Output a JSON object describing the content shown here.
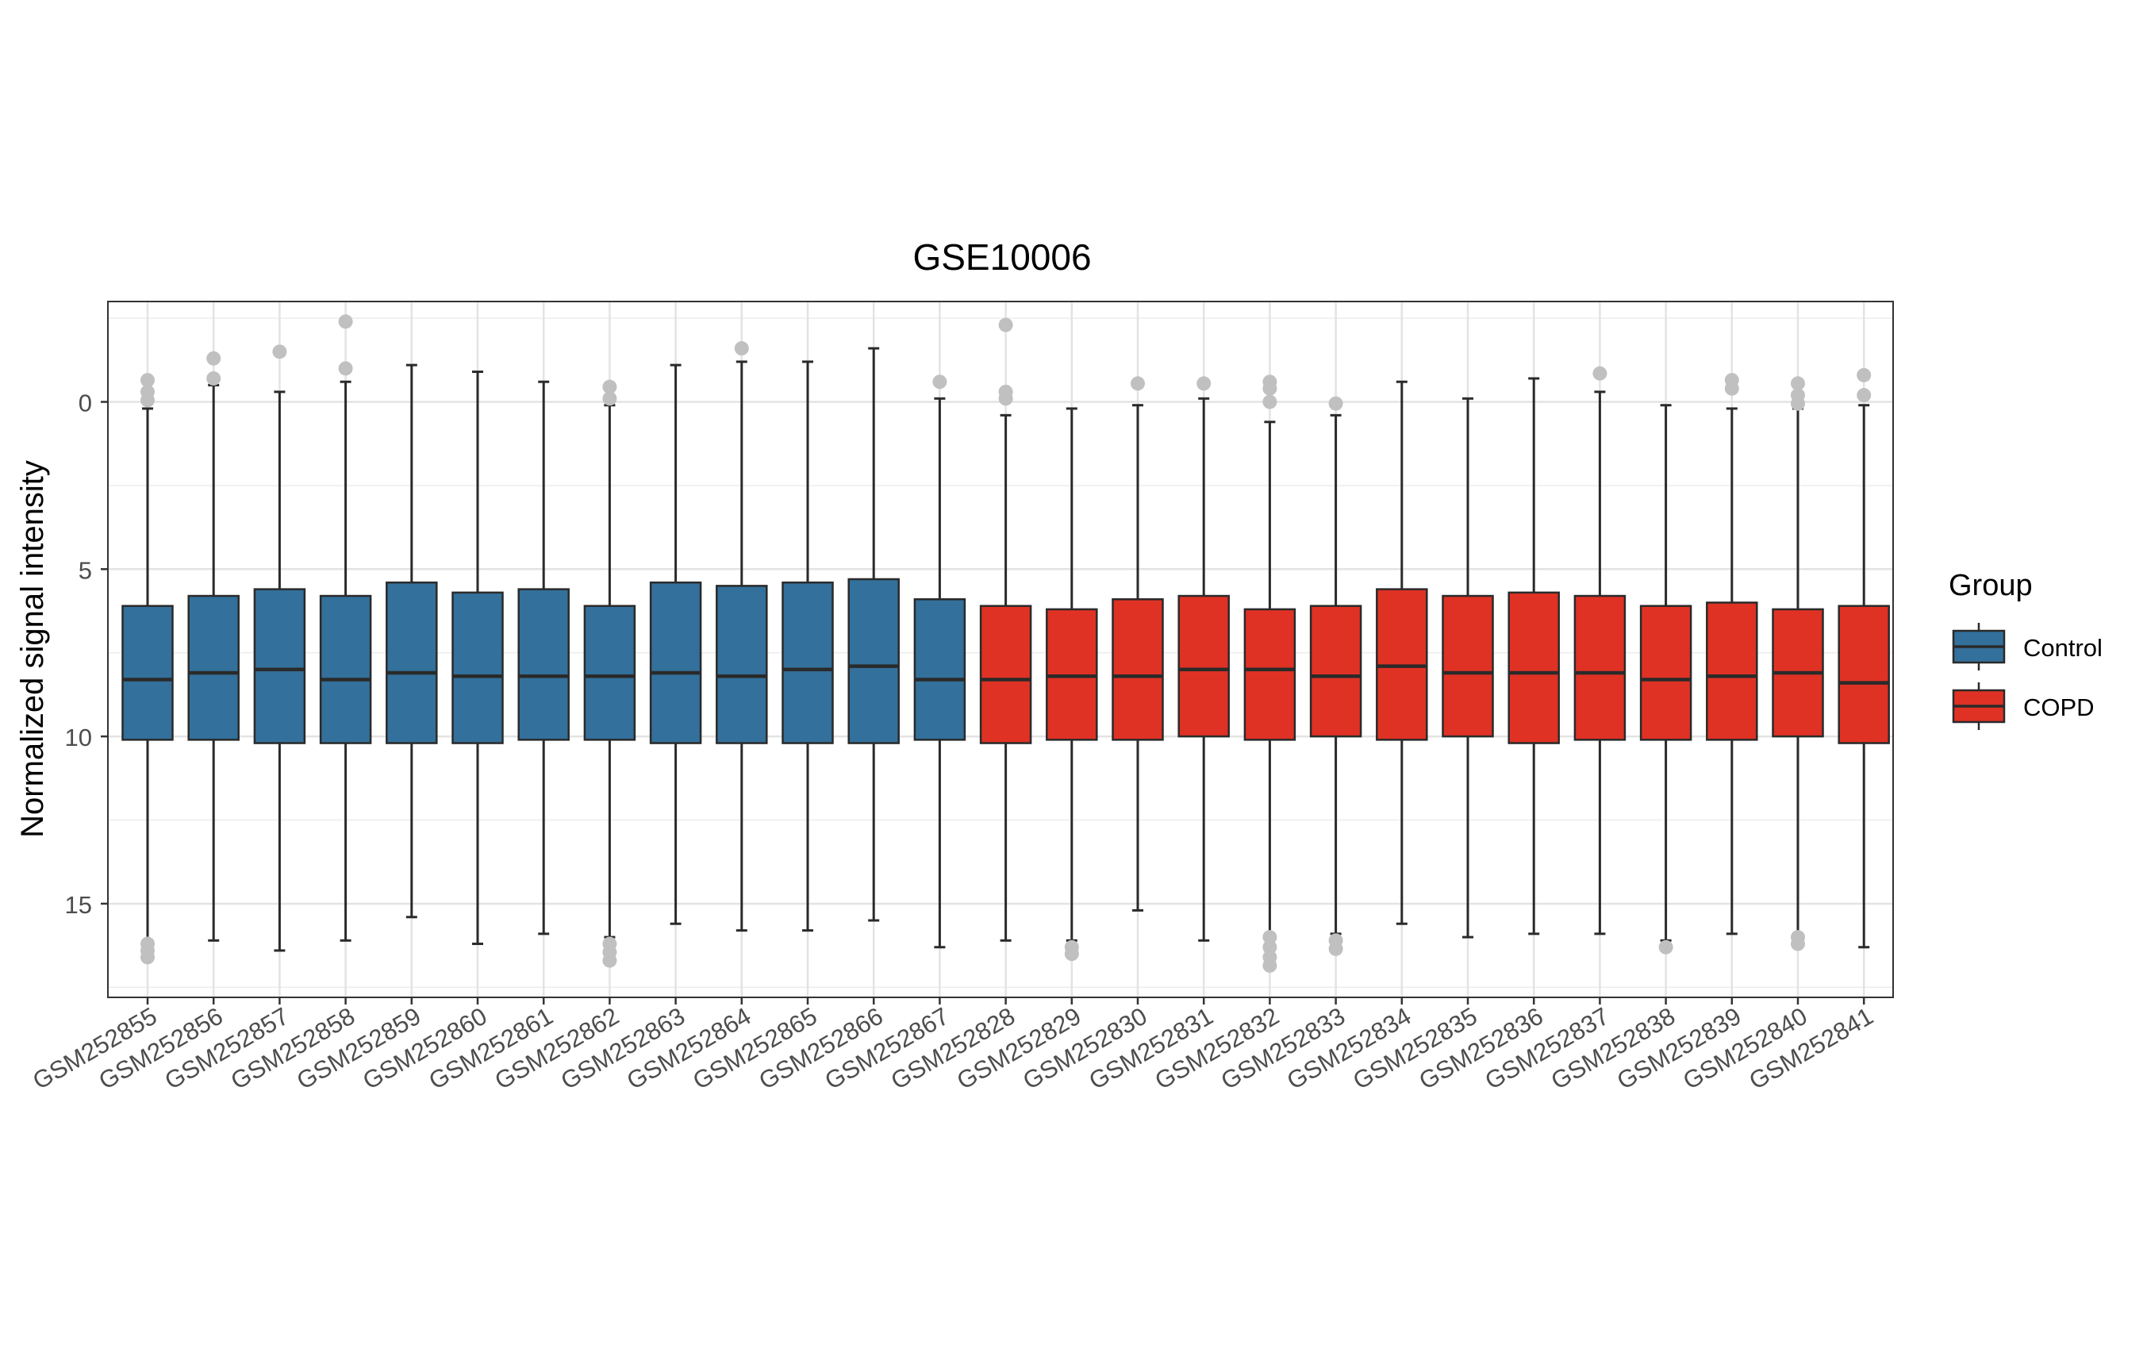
{
  "chart_data": {
    "type": "boxplot",
    "title": "GSE10006",
    "xlabel": "",
    "ylabel": "Normalized signal intensity",
    "y_reversed": true,
    "ylim": [
      -3.0,
      17.8
    ],
    "y_ticks": [
      0,
      5,
      10,
      15
    ],
    "grid": true,
    "legend": {
      "title": "Group",
      "position": "right",
      "entries": [
        {
          "name": "Control",
          "color": "#33709b"
        },
        {
          "name": "COPD",
          "color": "#df3224"
        }
      ]
    },
    "outlier_color": "#c0c0c0",
    "samples": [
      {
        "label": "GSM252855",
        "group": "Control",
        "whisker_low": 0.2,
        "q1": 6.1,
        "median": 8.3,
        "q3": 10.1,
        "whisker_high": 16.1,
        "outliers": [
          -0.65,
          -0.3,
          -0.05,
          16.2,
          16.4,
          16.6
        ]
      },
      {
        "label": "GSM252856",
        "group": "Control",
        "whisker_low": -0.5,
        "q1": 5.8,
        "median": 8.1,
        "q3": 10.1,
        "whisker_high": 16.1,
        "outliers": [
          -1.3,
          -0.7
        ]
      },
      {
        "label": "GSM252857",
        "group": "Control",
        "whisker_low": -0.3,
        "q1": 5.6,
        "median": 8.0,
        "q3": 10.2,
        "whisker_high": 16.4,
        "outliers": [
          -1.5
        ]
      },
      {
        "label": "GSM252858",
        "group": "Control",
        "whisker_low": -0.6,
        "q1": 5.8,
        "median": 8.3,
        "q3": 10.2,
        "whisker_high": 16.1,
        "outliers": [
          -2.4,
          -1.0
        ]
      },
      {
        "label": "GSM252859",
        "group": "Control",
        "whisker_low": -1.1,
        "q1": 5.4,
        "median": 8.1,
        "q3": 10.2,
        "whisker_high": 15.4,
        "outliers": []
      },
      {
        "label": "GSM252860",
        "group": "Control",
        "whisker_low": -0.9,
        "q1": 5.7,
        "median": 8.2,
        "q3": 10.2,
        "whisker_high": 16.2,
        "outliers": []
      },
      {
        "label": "GSM252861",
        "group": "Control",
        "whisker_low": -0.6,
        "q1": 5.6,
        "median": 8.2,
        "q3": 10.1,
        "whisker_high": 15.9,
        "outliers": []
      },
      {
        "label": "GSM252862",
        "group": "Control",
        "whisker_low": 0.1,
        "q1": 6.1,
        "median": 8.2,
        "q3": 10.1,
        "whisker_high": 16.0,
        "outliers": [
          -0.45,
          -0.1,
          16.2,
          16.45,
          16.7
        ]
      },
      {
        "label": "GSM252863",
        "group": "Control",
        "whisker_low": -1.1,
        "q1": 5.4,
        "median": 8.1,
        "q3": 10.2,
        "whisker_high": 15.6,
        "outliers": []
      },
      {
        "label": "GSM252864",
        "group": "Control",
        "whisker_low": -1.2,
        "q1": 5.5,
        "median": 8.2,
        "q3": 10.2,
        "whisker_high": 15.8,
        "outliers": [
          -1.6
        ]
      },
      {
        "label": "GSM252865",
        "group": "Control",
        "whisker_low": -1.2,
        "q1": 5.4,
        "median": 8.0,
        "q3": 10.2,
        "whisker_high": 15.8,
        "outliers": []
      },
      {
        "label": "GSM252866",
        "group": "Control",
        "whisker_low": -1.6,
        "q1": 5.3,
        "median": 7.9,
        "q3": 10.2,
        "whisker_high": 15.5,
        "outliers": []
      },
      {
        "label": "GSM252867",
        "group": "Control",
        "whisker_low": -0.1,
        "q1": 5.9,
        "median": 8.3,
        "q3": 10.1,
        "whisker_high": 16.3,
        "outliers": [
          -0.6
        ]
      },
      {
        "label": "GSM252828",
        "group": "COPD",
        "whisker_low": 0.4,
        "q1": 6.1,
        "median": 8.3,
        "q3": 10.2,
        "whisker_high": 16.1,
        "outliers": [
          -2.3,
          -0.3,
          -0.1
        ]
      },
      {
        "label": "GSM252829",
        "group": "COPD",
        "whisker_low": 0.2,
        "q1": 6.2,
        "median": 8.2,
        "q3": 10.1,
        "whisker_high": 16.1,
        "outliers": [
          16.3,
          16.5
        ]
      },
      {
        "label": "GSM252830",
        "group": "COPD",
        "whisker_low": 0.1,
        "q1": 5.9,
        "median": 8.2,
        "q3": 10.1,
        "whisker_high": 15.2,
        "outliers": [
          -0.55
        ]
      },
      {
        "label": "GSM252831",
        "group": "COPD",
        "whisker_low": -0.1,
        "q1": 5.8,
        "median": 8.0,
        "q3": 10.0,
        "whisker_high": 16.1,
        "outliers": [
          -0.55
        ]
      },
      {
        "label": "GSM252832",
        "group": "COPD",
        "whisker_low": 0.6,
        "q1": 6.2,
        "median": 8.0,
        "q3": 10.1,
        "whisker_high": 15.9,
        "outliers": [
          -0.6,
          -0.4,
          0.0,
          16.0,
          16.3,
          16.6,
          16.85
        ]
      },
      {
        "label": "GSM252833",
        "group": "COPD",
        "whisker_low": 0.4,
        "q1": 6.1,
        "median": 8.2,
        "q3": 10.0,
        "whisker_high": 15.9,
        "outliers": [
          0.05,
          16.1,
          16.35
        ]
      },
      {
        "label": "GSM252834",
        "group": "COPD",
        "whisker_low": -0.6,
        "q1": 5.6,
        "median": 7.9,
        "q3": 10.1,
        "whisker_high": 15.6,
        "outliers": []
      },
      {
        "label": "GSM252835",
        "group": "COPD",
        "whisker_low": -0.1,
        "q1": 5.8,
        "median": 8.1,
        "q3": 10.0,
        "whisker_high": 16.0,
        "outliers": []
      },
      {
        "label": "GSM252836",
        "group": "COPD",
        "whisker_low": -0.7,
        "q1": 5.7,
        "median": 8.1,
        "q3": 10.2,
        "whisker_high": 15.9,
        "outliers": []
      },
      {
        "label": "GSM252837",
        "group": "COPD",
        "whisker_low": -0.3,
        "q1": 5.8,
        "median": 8.1,
        "q3": 10.1,
        "whisker_high": 15.9,
        "outliers": [
          -0.85
        ]
      },
      {
        "label": "GSM252838",
        "group": "COPD",
        "whisker_low": 0.1,
        "q1": 6.1,
        "median": 8.3,
        "q3": 10.1,
        "whisker_high": 16.1,
        "outliers": [
          16.3
        ]
      },
      {
        "label": "GSM252839",
        "group": "COPD",
        "whisker_low": 0.2,
        "q1": 6.0,
        "median": 8.2,
        "q3": 10.1,
        "whisker_high": 15.9,
        "outliers": [
          -0.65,
          -0.4
        ]
      },
      {
        "label": "GSM252840",
        "group": "COPD",
        "whisker_low": 0.2,
        "q1": 6.2,
        "median": 8.1,
        "q3": 10.0,
        "whisker_high": 15.9,
        "outliers": [
          -0.55,
          -0.2,
          0.05,
          16.0,
          16.2
        ]
      },
      {
        "label": "GSM252841",
        "group": "COPD",
        "whisker_low": 0.1,
        "q1": 6.1,
        "median": 8.4,
        "q3": 10.2,
        "whisker_high": 16.3,
        "outliers": [
          -0.8,
          -0.2
        ]
      }
    ]
  }
}
